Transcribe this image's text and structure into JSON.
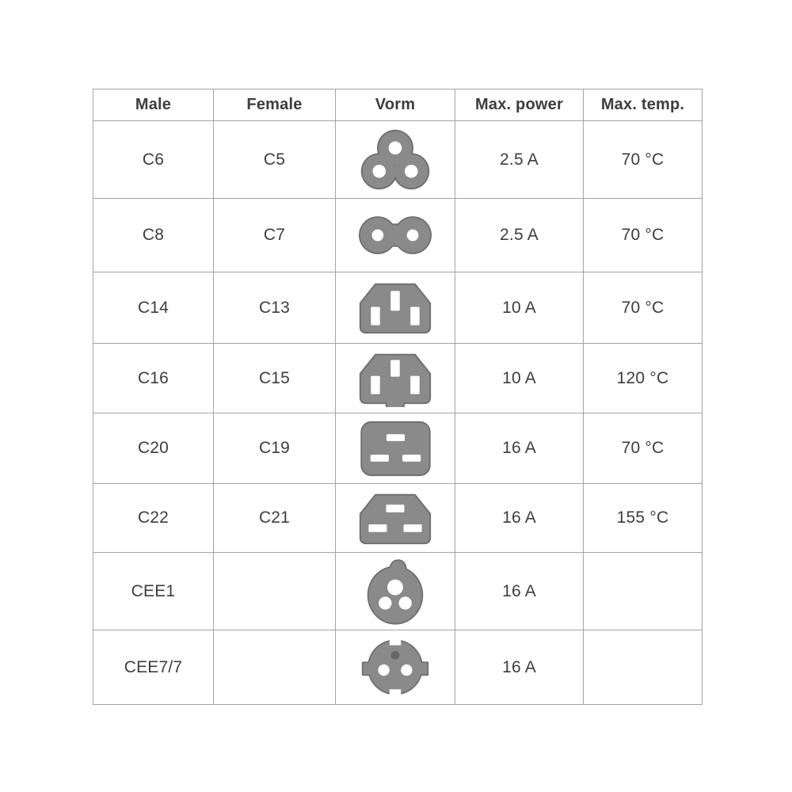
{
  "table": {
    "headers": [
      {
        "label": "Male"
      },
      {
        "label": "Female"
      },
      {
        "label": "Vorm"
      },
      {
        "label": "Max. power"
      },
      {
        "label": "Max. temp."
      }
    ],
    "rows": [
      {
        "male": "C6",
        "female": "C5",
        "icon": "c5",
        "power": "2.5 A",
        "temp": "70 °C"
      },
      {
        "male": "C8",
        "female": "C7",
        "icon": "c7",
        "power": "2.5 A",
        "temp": "70 °C"
      },
      {
        "male": "C14",
        "female": "C13",
        "icon": "c13",
        "power": "10 A",
        "temp": "70 °C"
      },
      {
        "male": "C16",
        "female": "C15",
        "icon": "c15",
        "power": "10 A",
        "temp": "120 °C"
      },
      {
        "male": "C20",
        "female": "C19",
        "icon": "c19",
        "power": "16 A",
        "temp": "70 °C"
      },
      {
        "male": "C22",
        "female": "C21",
        "icon": "c21",
        "power": "16 A",
        "temp": "155 °C"
      },
      {
        "male": "CEE1",
        "female": "",
        "icon": "cee1",
        "power": "16 A",
        "temp": ""
      },
      {
        "male": "CEE7/7",
        "female": "",
        "icon": "cee7-7",
        "power": "16 A",
        "temp": ""
      }
    ]
  },
  "colors": {
    "icon_fill": "#8a8a8a",
    "icon_outline": "#6f6f6f",
    "earth_pin_dot": "#676767",
    "grid_border": "#a3a3a3",
    "text": "#3d3d3d"
  }
}
